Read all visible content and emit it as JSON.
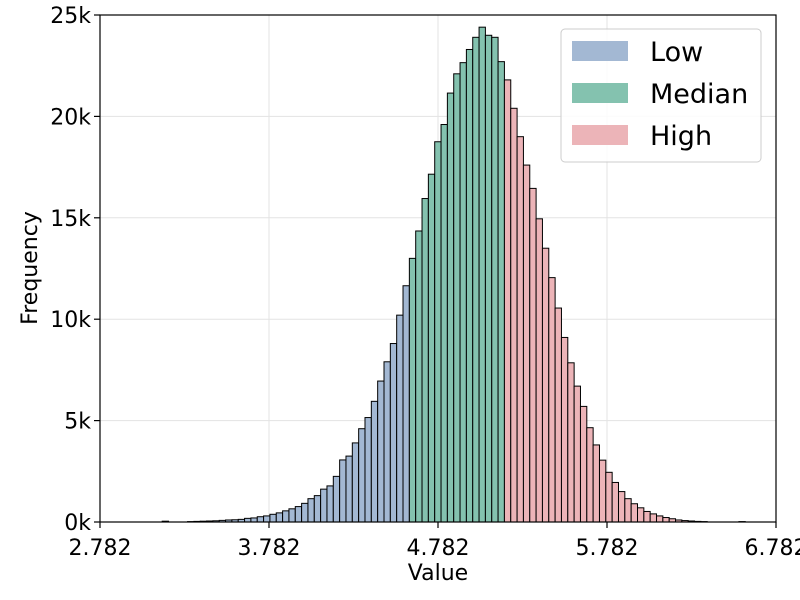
{
  "chart_data": {
    "type": "bar",
    "title": "",
    "xlabel": "Value",
    "ylabel": "Frequency",
    "xlim": [
      2.782,
      6.782
    ],
    "ylim": [
      0,
      25000
    ],
    "xticks": [
      2.782,
      3.782,
      4.782,
      5.782,
      6.782
    ],
    "xtick_labels": [
      "2.782",
      "3.782",
      "4.782",
      "5.782",
      "6.782"
    ],
    "yticks": [
      0,
      5000,
      10000,
      15000,
      20000,
      25000
    ],
    "ytick_labels": [
      "0k",
      "5k",
      "10k",
      "15k",
      "20k",
      "25k"
    ],
    "grid": true,
    "legend_position": "top-right",
    "bin_start": 3.0,
    "bin_width": 0.0375,
    "values": [
      0,
      0,
      0,
      0,
      40,
      0,
      0,
      0,
      20,
      30,
      40,
      50,
      60,
      80,
      100,
      110,
      130,
      180,
      200,
      260,
      300,
      380,
      450,
      550,
      650,
      760,
      920,
      1150,
      1300,
      1620,
      1780,
      2250,
      3060,
      3250,
      3900,
      4600,
      5150,
      5950,
      6950,
      7900,
      8800,
      10200,
      11650,
      13000,
      14350,
      15950,
      17150,
      18750,
      19600,
      21150,
      22100,
      22650,
      23300,
      23900,
      24400,
      24000,
      23900,
      22700,
      21800,
      20400,
      19000,
      17600,
      16450,
      14950,
      13500,
      12050,
      10550,
      9100,
      7850,
      6700,
      5700,
      4650,
      3800,
      3050,
      2450,
      1950,
      1500,
      1150,
      900,
      700,
      520,
      400,
      300,
      220,
      160,
      100,
      70,
      50,
      30,
      20,
      0,
      0,
      0,
      0,
      0,
      20
    ],
    "series": [
      {
        "name": "Low",
        "color": "#a3b8d3",
        "from_bin": 0,
        "to_bin": 42
      },
      {
        "name": "Median",
        "color": "#84c2af",
        "from_bin": 43,
        "to_bin": 57
      },
      {
        "name": "High",
        "color": "#ecb4b8",
        "from_bin": 58,
        "to_bin": 95
      }
    ],
    "edge_color": "#000000"
  }
}
